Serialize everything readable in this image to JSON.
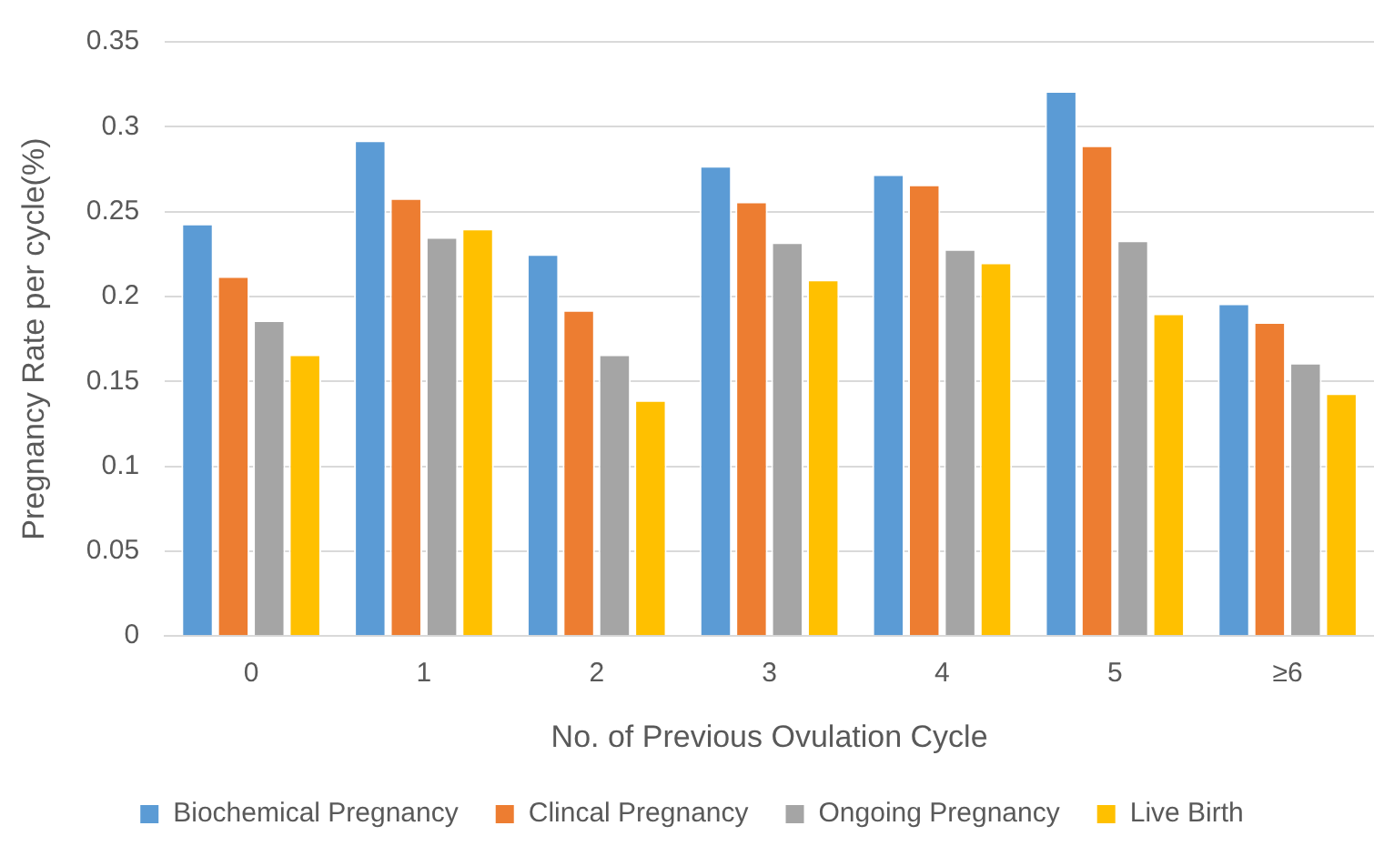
{
  "chart_data": {
    "type": "bar",
    "xlabel": "No. of Previous Ovulation Cycle",
    "ylabel": "Pregnancy Rate per cycle(%)",
    "categories": [
      "0",
      "1",
      "2",
      "3",
      "4",
      "5",
      "≥6"
    ],
    "series": [
      {
        "name": "Biochemical Pregnancy",
        "color": "#5b9bd5",
        "values": [
          0.243,
          0.292,
          0.225,
          0.277,
          0.272,
          0.321,
          0.196
        ]
      },
      {
        "name": "Clincal Pregnancy",
        "color": "#ed7d31",
        "values": [
          0.212,
          0.258,
          0.192,
          0.256,
          0.266,
          0.289,
          0.185
        ]
      },
      {
        "name": "Ongoing Pregnancy",
        "color": "#a5a5a5",
        "values": [
          0.186,
          0.235,
          0.166,
          0.232,
          0.228,
          0.233,
          0.161
        ]
      },
      {
        "name": "Live Birth",
        "color": "#ffc000",
        "values": [
          0.166,
          0.24,
          0.139,
          0.21,
          0.22,
          0.19,
          0.143
        ]
      }
    ],
    "ylim": [
      0,
      0.35
    ],
    "yticks": [
      0,
      0.05,
      0.1,
      0.15,
      0.2,
      0.25,
      0.3,
      0.35
    ],
    "grid": "y",
    "legend": "bottom"
  }
}
